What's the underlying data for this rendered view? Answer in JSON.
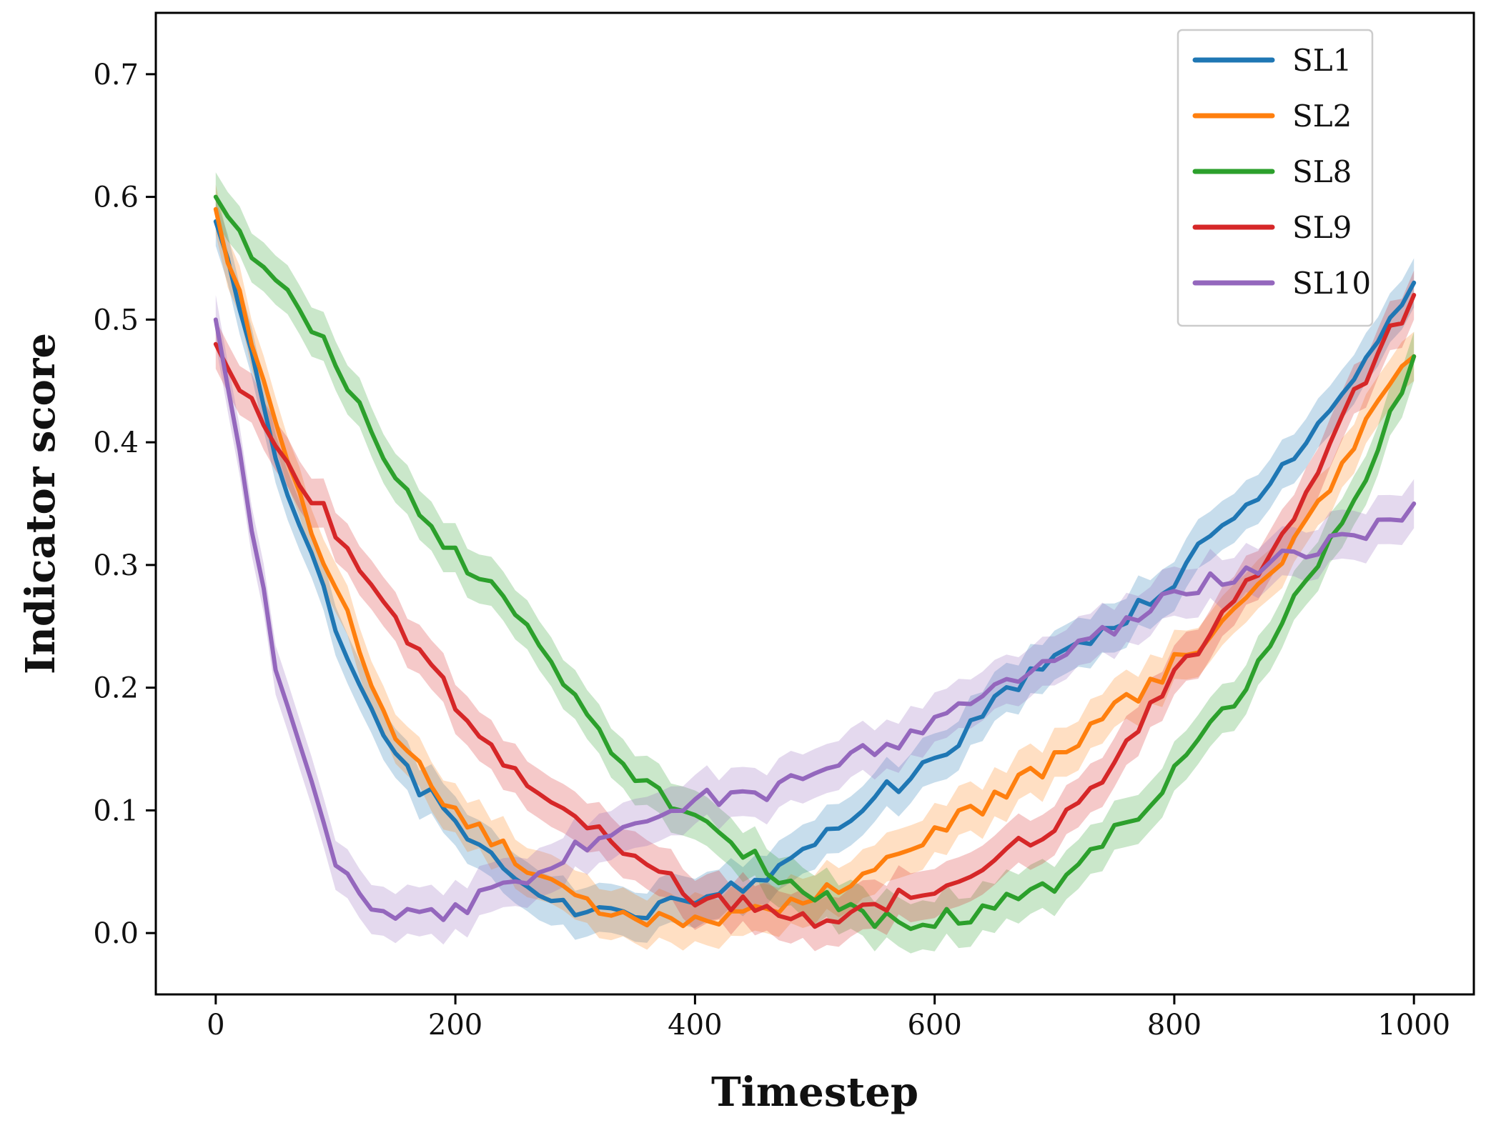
{
  "chart_data": {
    "type": "line",
    "title": "",
    "xlabel": "Timestep",
    "ylabel": "Indicator score",
    "xlim": [
      -50,
      1050
    ],
    "ylim": [
      -0.05,
      0.75
    ],
    "xticks": [
      0,
      200,
      400,
      600,
      800,
      1000
    ],
    "xtick_labels": [
      "0",
      "200",
      "400",
      "600",
      "800",
      "1000"
    ],
    "yticks": [
      0.0,
      0.1,
      0.2,
      0.3,
      0.4,
      0.5,
      0.6,
      0.7
    ],
    "ytick_labels": [
      "0.0",
      "0.1",
      "0.2",
      "0.3",
      "0.4",
      "0.5",
      "0.6",
      "0.7"
    ],
    "grid": false,
    "legend": "top-right",
    "band": "shaded ±0.02 confidence band around each series",
    "x": [
      0,
      50,
      100,
      150,
      200,
      250,
      300,
      350,
      400,
      450,
      500,
      550,
      600,
      650,
      700,
      750,
      800,
      850,
      900,
      950,
      1000
    ],
    "series": [
      {
        "name": "SL1",
        "color": "#1f77b4",
        "values": [
          0.58,
          0.39,
          0.25,
          0.14,
          0.09,
          0.04,
          0.02,
          0.01,
          0.03,
          0.04,
          0.07,
          0.11,
          0.14,
          0.19,
          0.22,
          0.25,
          0.29,
          0.34,
          0.39,
          0.45,
          0.53
        ]
      },
      {
        "name": "SL2",
        "color": "#ff7f0e",
        "values": [
          0.59,
          0.41,
          0.28,
          0.16,
          0.1,
          0.06,
          0.03,
          0.01,
          0.01,
          0.02,
          0.03,
          0.05,
          0.08,
          0.11,
          0.14,
          0.18,
          0.22,
          0.26,
          0.32,
          0.4,
          0.47
        ]
      },
      {
        "name": "SL8",
        "color": "#2ca02c",
        "values": [
          0.6,
          0.53,
          0.47,
          0.37,
          0.31,
          0.26,
          0.19,
          0.13,
          0.09,
          0.06,
          0.03,
          0.01,
          0.01,
          0.02,
          0.04,
          0.08,
          0.13,
          0.19,
          0.27,
          0.35,
          0.47
        ]
      },
      {
        "name": "SL9",
        "color": "#d62728",
        "values": [
          0.48,
          0.4,
          0.33,
          0.25,
          0.19,
          0.13,
          0.1,
          0.06,
          0.03,
          0.02,
          0.01,
          0.02,
          0.04,
          0.06,
          0.09,
          0.14,
          0.21,
          0.27,
          0.34,
          0.44,
          0.52
        ]
      },
      {
        "name": "SL10",
        "color": "#9467bd",
        "values": [
          0.5,
          0.22,
          0.05,
          0.01,
          0.02,
          0.04,
          0.07,
          0.09,
          0.11,
          0.11,
          0.13,
          0.15,
          0.17,
          0.2,
          0.22,
          0.25,
          0.28,
          0.29,
          0.31,
          0.32,
          0.35
        ]
      }
    ]
  }
}
